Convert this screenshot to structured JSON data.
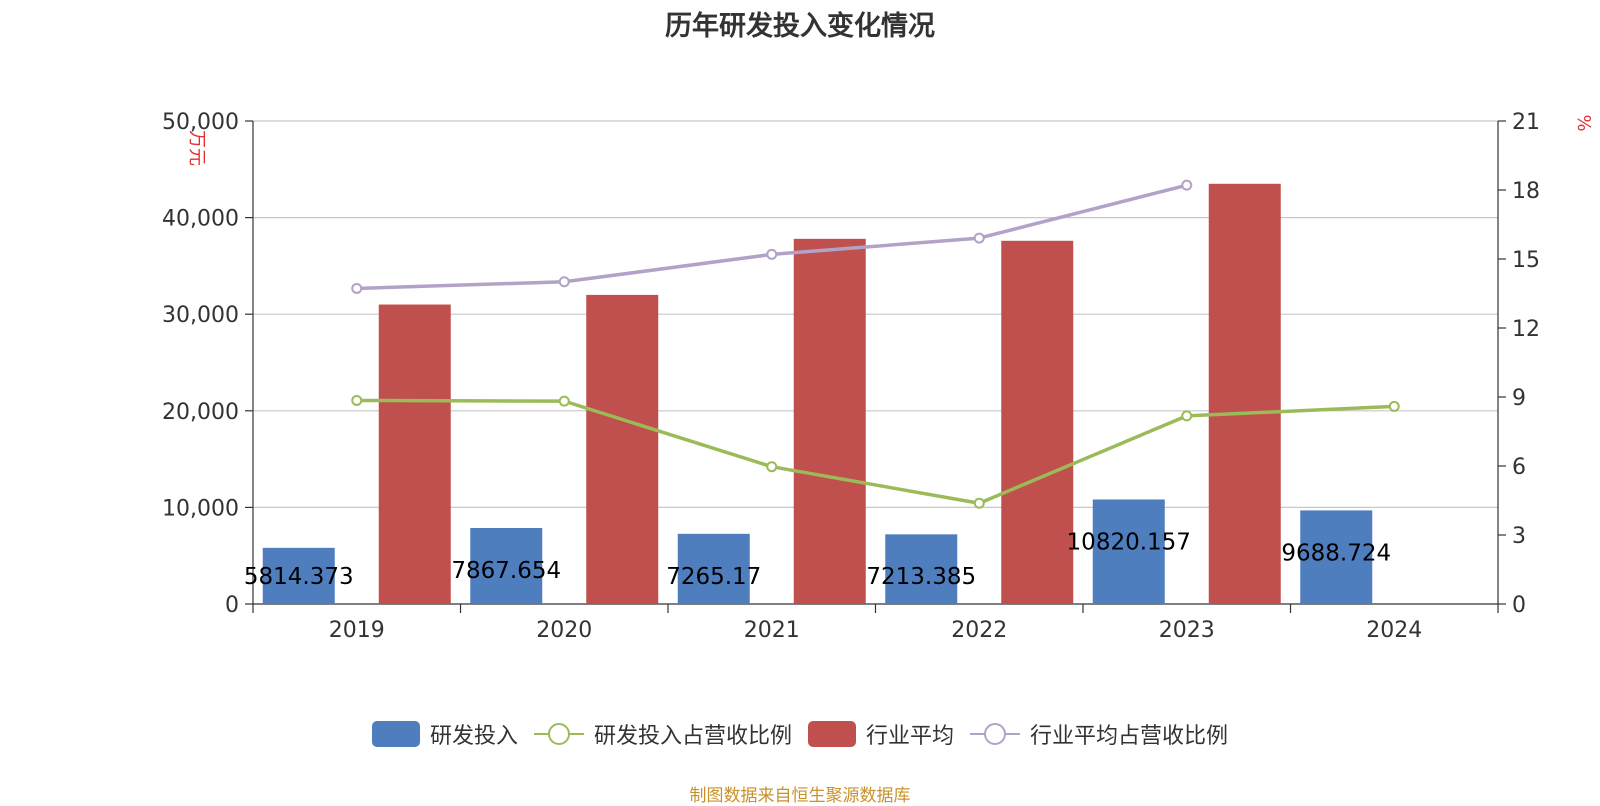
{
  "chart_data": {
    "type": "bar",
    "title": "历年研发投入变化情况",
    "categories": [
      "2019",
      "2020",
      "2021",
      "2022",
      "2023",
      "2024"
    ],
    "y_left": {
      "unit": "万元",
      "ylim": [
        0,
        50000
      ],
      "ticks": [
        "0",
        "10,000",
        "20,000",
        "30,000",
        "40,000",
        "50,000"
      ]
    },
    "y_right": {
      "unit": "%",
      "ylim": [
        0,
        21
      ],
      "ticks": [
        "0",
        "3",
        "6",
        "9",
        "12",
        "15",
        "18",
        "21"
      ]
    },
    "series": [
      {
        "name": "研发投入",
        "type": "bar",
        "axis": "left",
        "color": "#4f7ebf",
        "values": [
          5814.373,
          7867.654,
          7265.17,
          7213.385,
          10820.157,
          9688.724
        ],
        "labels": [
          "5814.373",
          "7867.654",
          "7265.17",
          "7213.385",
          "10820.157",
          "9688.724"
        ]
      },
      {
        "name": "研发投入占营收比例",
        "type": "line",
        "axis": "right",
        "color": "#9bbb59",
        "values": [
          8.85,
          8.82,
          5.97,
          4.38,
          8.18,
          8.59
        ]
      },
      {
        "name": "行业平均",
        "type": "bar",
        "axis": "left",
        "color": "#c0504d",
        "values": [
          31000,
          32000,
          37800,
          37600,
          43500,
          null
        ]
      },
      {
        "name": "行业平均占营收比例",
        "type": "line",
        "axis": "right",
        "color": "#b3a2c7",
        "values": [
          13.72,
          14.01,
          15.2,
          15.91,
          18.21,
          null
        ]
      }
    ],
    "grid": true,
    "legend": "bottom"
  },
  "source_note": "制图数据来自恒生聚源数据库"
}
